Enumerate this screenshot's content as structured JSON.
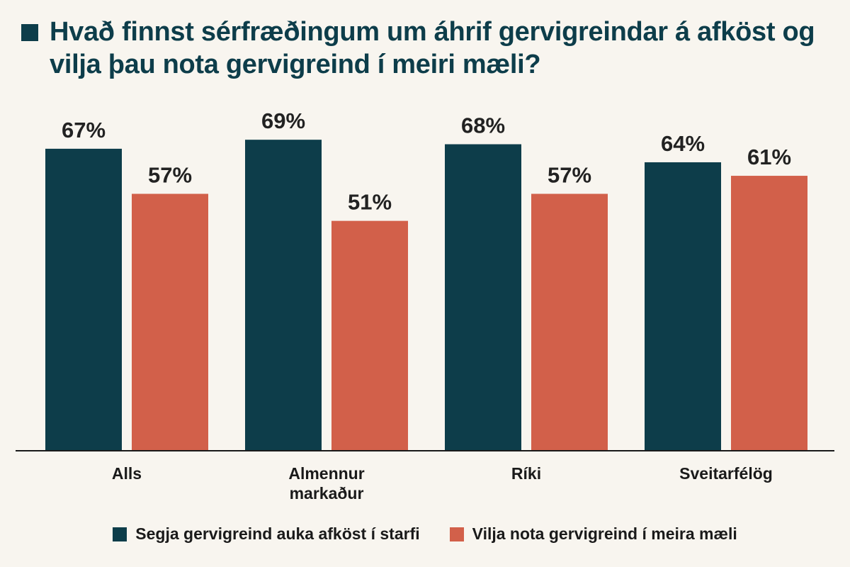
{
  "colors": {
    "background": "#f8f5ef",
    "primary": "#0d3d4a",
    "secondary": "#d2604a",
    "axis": "#1a1a1a"
  },
  "chart_data": {
    "type": "bar",
    "title": "Hvað finnst sérfræðingum um áhrif gervigreindar á afköst og vilja þau nota gervigreind í meiri mæli?",
    "categories": [
      [
        "Alls"
      ],
      [
        "Almennur",
        "markaður"
      ],
      [
        "Ríki"
      ],
      [
        "Sveitarfélög"
      ]
    ],
    "series": [
      {
        "name": "Segja gervigreind auka afköst í starfi",
        "values": [
          67,
          69,
          68,
          64
        ],
        "labels": [
          "67%",
          "69%",
          "68%",
          "64%"
        ]
      },
      {
        "name": "Vilja nota gervigreind í meira mæli",
        "values": [
          57,
          51,
          57,
          61
        ],
        "labels": [
          "57%",
          "51%",
          "57%",
          "61%"
        ]
      }
    ],
    "ylim": [
      0,
      100
    ],
    "xlabel": "",
    "ylabel": "",
    "grid": false,
    "legend": "bottom"
  }
}
